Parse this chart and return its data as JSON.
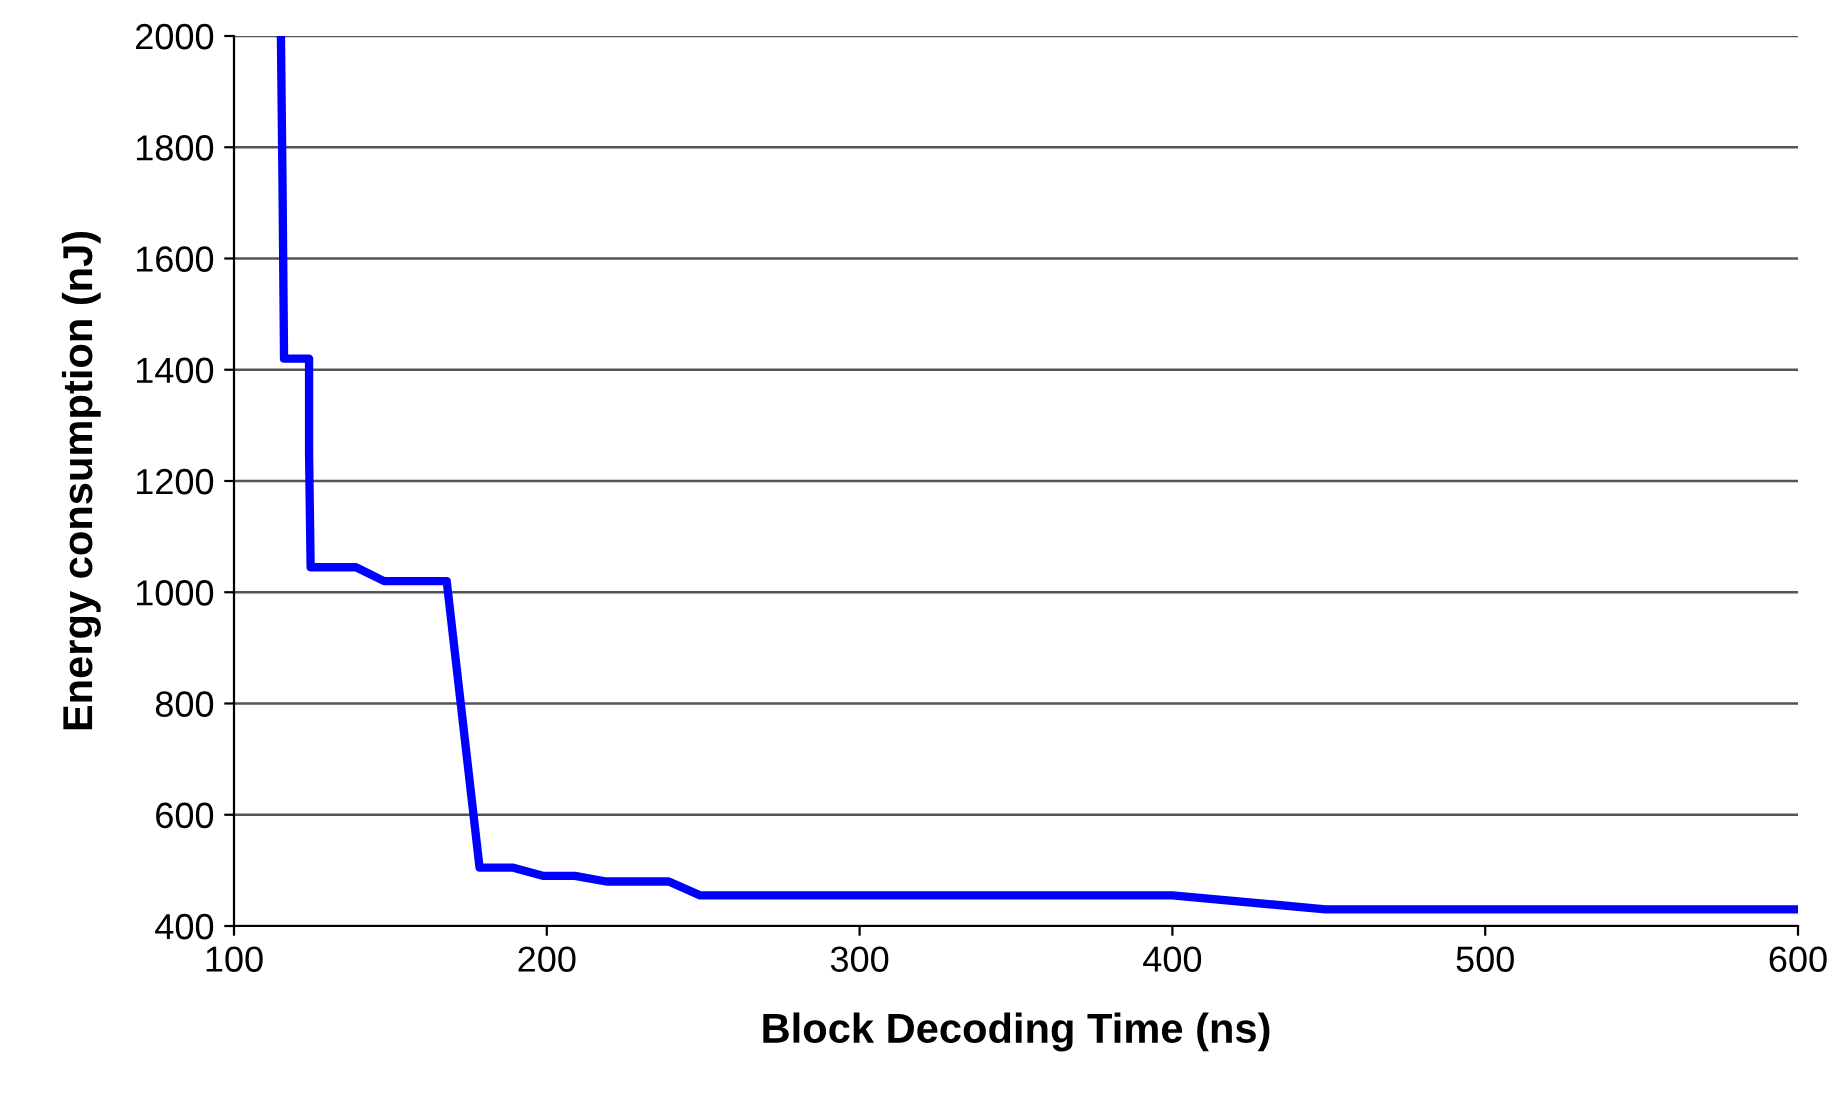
{
  "chart_data": {
    "type": "line",
    "xlabel": "Block Decoding Time (ns)",
    "ylabel": "Energy consumption (nJ)",
    "x": [
      115,
      115.5,
      116,
      124,
      124,
      124.5,
      139,
      148,
      168,
      178.5,
      189,
      199,
      209,
      219,
      239,
      249,
      400,
      449,
      600
    ],
    "series": [
      {
        "color": "#0000ff",
        "values": [
          2000,
          1740,
          1420,
          1420,
          1250,
          1045,
          1045,
          1020,
          1020,
          505,
          505,
          490,
          490,
          480,
          480,
          455,
          455,
          430,
          430
        ]
      }
    ],
    "xlim": [
      100,
      600
    ],
    "xticks": [
      100,
      200,
      300,
      400,
      500,
      600
    ],
    "ylim": [
      400,
      2000
    ],
    "yticks": [
      400,
      600,
      800,
      1000,
      1200,
      1400,
      1600,
      1800,
      2000
    ],
    "grid": "y",
    "legend": false,
    "marker": "none",
    "line_style": "solid"
  }
}
